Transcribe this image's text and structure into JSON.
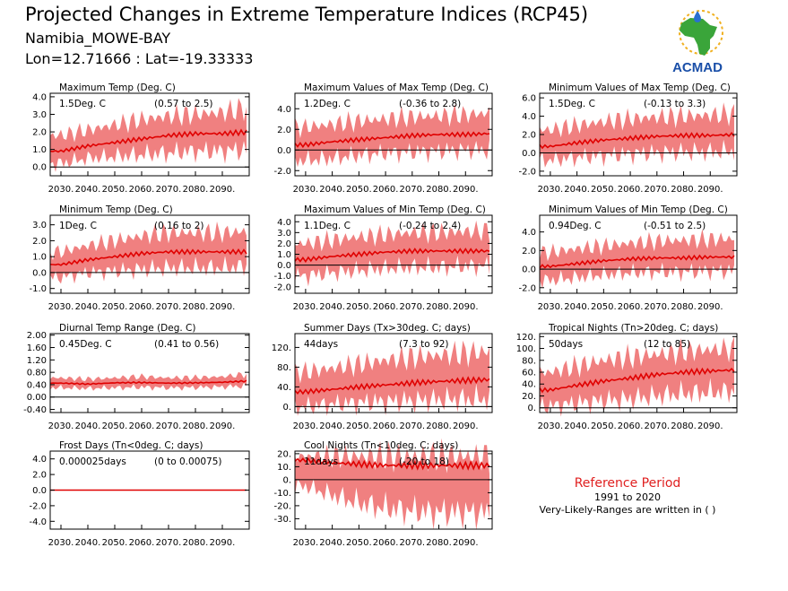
{
  "header": {
    "title": "Projected Changes in Extreme Temperature Indices (RCP45)",
    "location": "Namibia_MOWE-BAY",
    "coords": "Lon=12.71666 : Lat=-19.33333"
  },
  "logo": {
    "text": "ACMAD",
    "icon": "africa-map-logo-icon",
    "colors": {
      "africa": "#3aa53a",
      "sun": "#f0b020",
      "drop": "#2a6fd0",
      "text": "#1a4fa8"
    }
  },
  "reference": {
    "label": "Reference Period",
    "years": "1991 to 2020",
    "note": "Very-Likely-Ranges are written in ( )"
  },
  "colors": {
    "band": "#f08080",
    "line": "#e00000",
    "zero": "#000000"
  },
  "chart_data": [
    {
      "type": "area",
      "title": "Maximum Temp (Deg. C)",
      "mean_text": "1.5Deg. C",
      "range_text": "(0.57 to 2.5)",
      "ylim": [
        -0.5,
        4.2
      ],
      "yticks": [
        "4.0",
        "3.0",
        "2.0",
        "1.0",
        "0.0"
      ],
      "ytick_values": [
        4,
        3,
        2,
        1,
        0
      ],
      "xticks": [
        "2030.",
        "2040.",
        "2050.",
        "2060.",
        "2070.",
        "2080.",
        "2090."
      ],
      "xlim": [
        2026,
        2100
      ],
      "x": [
        2030,
        2040,
        2050,
        2060,
        2070,
        2080,
        2090,
        2100
      ],
      "mean": [
        0.9,
        1.2,
        1.4,
        1.6,
        1.8,
        1.9,
        1.9,
        2.0
      ],
      "low": [
        0.2,
        0.5,
        0.6,
        0.7,
        0.8,
        0.9,
        0.9,
        1.0
      ],
      "high": [
        1.8,
        2.1,
        2.4,
        2.7,
        2.9,
        3.0,
        3.1,
        3.4
      ]
    },
    {
      "type": "area",
      "title": "Maximum Values of Max Temp (Deg. C)",
      "mean_text": "1.2Deg. C",
      "range_text": "(-0.36 to 2.8)",
      "ylim": [
        -2.5,
        5.5
      ],
      "yticks": [
        "4.0",
        "2.0",
        "0.0",
        "-2.0"
      ],
      "ytick_values": [
        4,
        2,
        0,
        -2
      ],
      "xticks": [
        "2030.",
        "2040.",
        "2050.",
        "2060.",
        "2070.",
        "2080.",
        "2090."
      ],
      "xlim": [
        2026,
        2100
      ],
      "x": [
        2030,
        2040,
        2050,
        2060,
        2070,
        2080,
        2090,
        2100
      ],
      "mean": [
        0.5,
        0.8,
        1.0,
        1.2,
        1.4,
        1.5,
        1.5,
        1.6
      ],
      "low": [
        -1.0,
        -0.8,
        -0.5,
        -0.3,
        -0.2,
        -0.1,
        0.0,
        0.0
      ],
      "high": [
        2.2,
        2.5,
        2.8,
        3.0,
        3.2,
        3.3,
        3.4,
        3.6
      ]
    },
    {
      "type": "area",
      "title": "Minimum Values of Max Temp (Deg. C)",
      "mean_text": "1.5Deg. C",
      "range_text": "(-0.13 to 3.3)",
      "ylim": [
        -2.5,
        6.5
      ],
      "yticks": [
        "6.0",
        "4.0",
        "2.0",
        "0.0",
        "-2.0"
      ],
      "ytick_values": [
        6,
        4,
        2,
        0,
        -2
      ],
      "xticks": [
        "2030.",
        "2040.",
        "2050.",
        "2060.",
        "2070.",
        "2080.",
        "2090."
      ],
      "xlim": [
        2026,
        2100
      ],
      "x": [
        2030,
        2040,
        2050,
        2060,
        2070,
        2080,
        2090,
        2100
      ],
      "mean": [
        0.7,
        1.1,
        1.4,
        1.6,
        1.8,
        1.9,
        1.9,
        2.0
      ],
      "low": [
        -0.8,
        -0.5,
        -0.3,
        -0.1,
        0.0,
        0.1,
        0.1,
        0.2
      ],
      "high": [
        2.5,
        3.0,
        3.4,
        3.7,
        3.9,
        4.0,
        4.1,
        4.3
      ]
    },
    {
      "type": "area",
      "title": "Minimum Temp (Deg. C)",
      "mean_text": "1Deg. C",
      "range_text": "(0.16 to 2)",
      "ylim": [
        -1.3,
        3.6
      ],
      "yticks": [
        "3.0",
        "2.0",
        "1.0",
        "0.0",
        "-1.0"
      ],
      "ytick_values": [
        3,
        2,
        1,
        0,
        -1
      ],
      "xticks": [
        "2030.",
        "2040.",
        "2050.",
        "2060.",
        "2070.",
        "2080.",
        "2090."
      ],
      "xlim": [
        2026,
        2100
      ],
      "x": [
        2030,
        2040,
        2050,
        2060,
        2070,
        2080,
        2090,
        2100
      ],
      "mean": [
        0.5,
        0.8,
        1.0,
        1.2,
        1.3,
        1.3,
        1.3,
        1.3
      ],
      "low": [
        -0.3,
        0.0,
        0.1,
        0.2,
        0.3,
        0.3,
        0.3,
        0.4
      ],
      "high": [
        1.3,
        1.7,
        2.0,
        2.3,
        2.5,
        2.5,
        2.5,
        2.6
      ]
    },
    {
      "type": "area",
      "title": "Maximum Values of Min Temp (Deg. C)",
      "mean_text": "1.1Deg. C",
      "range_text": "(-0.24 to 2.4)",
      "ylim": [
        -2.6,
        4.6
      ],
      "yticks": [
        "4.0",
        "3.0",
        "2.0",
        "1.0",
        "0.0",
        "-1.0",
        "-2.0"
      ],
      "ytick_values": [
        4,
        3,
        2,
        1,
        0,
        -1,
        -2
      ],
      "xticks": [
        "2030.",
        "2040.",
        "2050.",
        "2060.",
        "2070.",
        "2080.",
        "2090."
      ],
      "xlim": [
        2026,
        2100
      ],
      "x": [
        2030,
        2040,
        2050,
        2060,
        2070,
        2080,
        2090,
        2100
      ],
      "mean": [
        0.5,
        0.8,
        1.0,
        1.2,
        1.3,
        1.3,
        1.3,
        1.3
      ],
      "low": [
        -1.0,
        -0.7,
        -0.5,
        -0.3,
        -0.2,
        -0.2,
        -0.1,
        -0.1
      ],
      "high": [
        2.0,
        2.3,
        2.6,
        2.8,
        3.0,
        3.0,
        3.1,
        3.2
      ]
    },
    {
      "type": "area",
      "title": "Minimum Values of Min Temp (Deg. C)",
      "mean_text": "0.94Deg. C",
      "range_text": "(-0.51 to 2.5)",
      "ylim": [
        -2.6,
        5.8
      ],
      "yticks": [
        "4.0",
        "2.0",
        "0.0",
        "-2.0"
      ],
      "ytick_values": [
        4,
        2,
        0,
        -2
      ],
      "xticks": [
        "2030.",
        "2040.",
        "2050.",
        "2060.",
        "2070.",
        "2080.",
        "2090."
      ],
      "xlim": [
        2026,
        2100
      ],
      "x": [
        2030,
        2040,
        2050,
        2060,
        2070,
        2080,
        2090,
        2100
      ],
      "mean": [
        0.3,
        0.6,
        0.9,
        1.1,
        1.2,
        1.2,
        1.3,
        1.3
      ],
      "low": [
        -1.2,
        -0.9,
        -0.6,
        -0.4,
        -0.3,
        -0.3,
        -0.2,
        -0.2
      ],
      "high": [
        1.8,
        2.2,
        2.5,
        2.8,
        3.0,
        3.1,
        3.2,
        3.3
      ]
    },
    {
      "type": "area",
      "title": "Diurnal Temp Range (Deg. C)",
      "mean_text": "0.45Deg. C",
      "range_text": "(0.41 to 0.56)",
      "ylim": [
        -0.5,
        2.05
      ],
      "yticks": [
        "2.00",
        "1.60",
        "1.20",
        "0.80",
        "0.40",
        "0.00",
        "-0.40"
      ],
      "ytick_values": [
        2.0,
        1.6,
        1.2,
        0.8,
        0.4,
        0.0,
        -0.4
      ],
      "xticks": [
        "2030.",
        "2040.",
        "2050.",
        "2060.",
        "2070.",
        "2080.",
        "2090."
      ],
      "xlim": [
        2026,
        2100
      ],
      "x": [
        2030,
        2040,
        2050,
        2060,
        2070,
        2080,
        2090,
        2100
      ],
      "mean": [
        0.45,
        0.42,
        0.46,
        0.47,
        0.45,
        0.46,
        0.48,
        0.52
      ],
      "low": [
        0.3,
        0.28,
        0.3,
        0.32,
        0.3,
        0.31,
        0.33,
        0.36
      ],
      "high": [
        0.62,
        0.58,
        0.62,
        0.66,
        0.62,
        0.63,
        0.66,
        0.75
      ]
    },
    {
      "type": "area",
      "title": "Summer Days (Tx>30deg. C; days)",
      "mean_text": "44days",
      "range_text": "(7.3 to 92)",
      "ylim": [
        -12,
        148
      ],
      "yticks": [
        "120.",
        "80.",
        "40.",
        "0."
      ],
      "ytick_values": [
        120,
        80,
        40,
        0
      ],
      "xticks": [
        "2030.",
        "2040.",
        "2050.",
        "2060.",
        "2070.",
        "2080.",
        "2090."
      ],
      "xlim": [
        2026,
        2100
      ],
      "x": [
        2030,
        2040,
        2050,
        2060,
        2070,
        2080,
        2090,
        2100
      ],
      "mean": [
        30,
        35,
        40,
        44,
        48,
        51,
        53,
        55
      ],
      "low": [
        0,
        5,
        8,
        10,
        12,
        14,
        15,
        16
      ],
      "high": [
        70,
        78,
        86,
        94,
        100,
        104,
        108,
        112
      ]
    },
    {
      "type": "area",
      "title": "Tropical Nights (Tn>20deg. C; days)",
      "mean_text": "50days",
      "range_text": "(12 to 85)",
      "ylim": [
        -8,
        125
      ],
      "yticks": [
        "120.",
        "100.",
        "80.",
        "60.",
        "40.",
        "20.",
        "0."
      ],
      "ytick_values": [
        120,
        100,
        80,
        60,
        40,
        20,
        0
      ],
      "xticks": [
        "2030.",
        "2040.",
        "2050.",
        "2060.",
        "2070.",
        "2080.",
        "2090."
      ],
      "xlim": [
        2026,
        2100
      ],
      "x": [
        2030,
        2040,
        2050,
        2060,
        2070,
        2080,
        2090,
        2100
      ],
      "mean": [
        30,
        38,
        45,
        50,
        56,
        60,
        62,
        64
      ],
      "low": [
        3,
        8,
        12,
        15,
        20,
        24,
        26,
        28
      ],
      "high": [
        60,
        70,
        80,
        85,
        90,
        95,
        98,
        100
      ]
    },
    {
      "type": "area",
      "title": "Frost Days (Tn<0deg. C; days)",
      "mean_text": "0.000025days",
      "range_text": "(0 to 0.00075)",
      "ylim": [
        -5,
        5
      ],
      "yticks": [
        "4.0",
        "2.0",
        "0.0",
        "-2.0",
        "-4.0"
      ],
      "ytick_values": [
        4,
        2,
        0,
        -2,
        -4
      ],
      "xticks": [
        "2030.",
        "2040.",
        "2050.",
        "2060.",
        "2070.",
        "2080.",
        "2090."
      ],
      "xlim": [
        2026,
        2100
      ],
      "x": [
        2030,
        2040,
        2050,
        2060,
        2070,
        2080,
        2090,
        2100
      ],
      "mean": [
        0,
        0,
        0,
        0,
        0,
        0,
        0,
        0
      ],
      "low": [
        0,
        0,
        0,
        0,
        0,
        0,
        0,
        0
      ],
      "high": [
        0.00075,
        0.00075,
        0.00075,
        0.00075,
        0.00075,
        0.00075,
        0.00075,
        0.00075
      ]
    },
    {
      "type": "area",
      "title": "Cool Nights (Tn<10deg. C; days)",
      "mean_text": "11days",
      "range_text": "(-20 to 18)",
      "ylim": [
        -38,
        22
      ],
      "yticks": [
        "20.",
        "10.",
        "0.",
        "-10.",
        "-20.",
        "-30."
      ],
      "ytick_values": [
        20,
        10,
        0,
        -10,
        -20,
        -30
      ],
      "xticks": [
        "2030.",
        "2040.",
        "2050.",
        "2060.",
        "2070.",
        "2080.",
        "2090."
      ],
      "xlim": [
        2026,
        2100
      ],
      "x": [
        2030,
        2040,
        2050,
        2060,
        2070,
        2080,
        2090,
        2100
      ],
      "mean": [
        15,
        13,
        12,
        11,
        11,
        11,
        11,
        11
      ],
      "low": [
        -5,
        -12,
        -18,
        -22,
        -24,
        -25,
        -25,
        -26
      ],
      "high": [
        18,
        18,
        18,
        18,
        18,
        18,
        18,
        18
      ]
    }
  ]
}
